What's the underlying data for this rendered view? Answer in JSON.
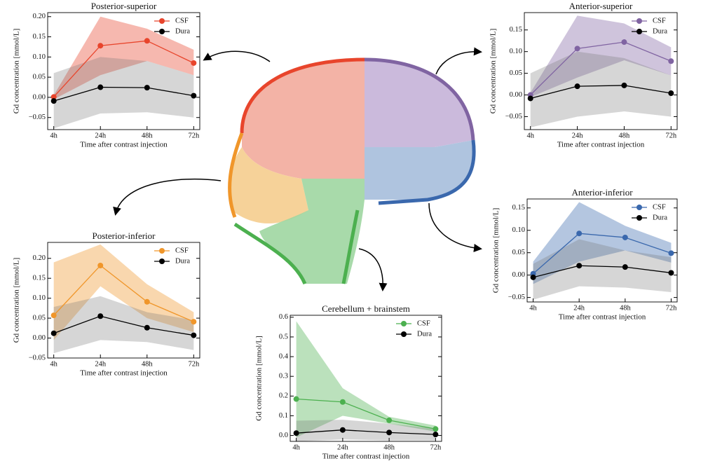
{
  "chart_data": [
    {
      "type": "line",
      "title": "Posterior-superior",
      "xlabel": "Time after contrast injection",
      "ylabel": "Gd concentration [mmol/L]",
      "categories": [
        "4h",
        "24h",
        "48h",
        "72h"
      ],
      "ylim": [
        -0.08,
        0.21
      ],
      "yticks": [
        {
          "value": -0.05,
          "label": "−0.05"
        },
        {
          "value": 0,
          "label": "0.00"
        },
        0.05,
        {
          "value": 0.1,
          "label": "0.10"
        },
        0.15,
        {
          "value": 0.2,
          "label": "0.20"
        }
      ],
      "legend": "upper right",
      "series": [
        {
          "name": "CSF",
          "color": "#e8452c",
          "values": [
            0.001,
            0.128,
            0.14,
            0.085
          ],
          "upper": [
            0.005,
            0.2,
            0.17,
            0.118
          ],
          "lower": [
            -0.005,
            0.055,
            0.09,
            0.055
          ]
        },
        {
          "name": "Dura",
          "color": "#000000",
          "values": [
            -0.009,
            0.025,
            0.024,
            0.004
          ],
          "upper": [
            0.06,
            0.1,
            0.09,
            0.055
          ],
          "lower": [
            -0.077,
            -0.04,
            -0.037,
            -0.05
          ]
        }
      ]
    },
    {
      "type": "line",
      "title": "Anterior-superior",
      "xlabel": "Time after contrast injection",
      "ylabel": "Gd concentration [mmol/L]",
      "categories": [
        "4h",
        "24h",
        "48h",
        "72h"
      ],
      "ylim": [
        -0.08,
        0.19
      ],
      "yticks": [
        {
          "value": -0.05,
          "label": "−0.05"
        },
        {
          "value": 0,
          "label": "0.00"
        },
        0.05,
        {
          "value": 0.1,
          "label": "0.10"
        },
        0.15
      ],
      "legend": "upper right",
      "series": [
        {
          "name": "CSF",
          "color": "#8064a2",
          "values": [
            0.0,
            0.107,
            0.122,
            0.078
          ],
          "upper": [
            0.005,
            0.183,
            0.165,
            0.11
          ],
          "lower": [
            -0.005,
            0.04,
            0.08,
            0.045
          ]
        },
        {
          "name": "Dura",
          "color": "#000000",
          "values": [
            -0.008,
            0.02,
            0.022,
            0.004
          ],
          "upper": [
            0.05,
            0.1,
            0.085,
            0.045
          ],
          "lower": [
            -0.075,
            -0.05,
            -0.038,
            -0.05
          ]
        }
      ]
    },
    {
      "type": "line",
      "title": "Anterior-inferior",
      "xlabel": "Time after contrast injection",
      "ylabel": "Gd concentration [mmol/L]",
      "categories": [
        "4h",
        "24h",
        "48h",
        "72h"
      ],
      "ylim": [
        -0.06,
        0.17
      ],
      "yticks": [
        {
          "value": -0.05,
          "label": "−0.05"
        },
        {
          "value": 0,
          "label": "0.00"
        },
        0.05,
        {
          "value": 0.1,
          "label": "0.10"
        },
        0.15
      ],
      "legend": "upper right",
      "series": [
        {
          "name": "CSF",
          "color": "#3a68ad",
          "values": [
            0.003,
            0.093,
            0.084,
            0.049
          ],
          "upper": [
            0.03,
            0.163,
            0.11,
            0.072
          ],
          "lower": [
            -0.02,
            0.03,
            0.055,
            0.028
          ]
        },
        {
          "name": "Dura",
          "color": "#000000",
          "values": [
            -0.005,
            0.021,
            0.018,
            0.005
          ],
          "upper": [
            0.025,
            0.08,
            0.055,
            0.04
          ],
          "lower": [
            -0.055,
            -0.025,
            -0.028,
            -0.038
          ]
        }
      ]
    },
    {
      "type": "line",
      "title": "Posterior-inferior",
      "xlabel": "Time after contrast injection",
      "ylabel": "Gd concentration [mmol/L]",
      "categories": [
        "4h",
        "24h",
        "48h",
        "72h"
      ],
      "ylim": [
        -0.05,
        0.24
      ],
      "yticks": [
        {
          "value": -0.05,
          "label": "−0.05"
        },
        {
          "value": 0,
          "label": "0.00"
        },
        0.05,
        {
          "value": 0.1,
          "label": "0.10"
        },
        0.15,
        {
          "value": 0.2,
          "label": "0.20"
        }
      ],
      "legend": "upper right",
      "series": [
        {
          "name": "CSF",
          "color": "#f0962a",
          "values": [
            0.057,
            0.182,
            0.091,
            0.041
          ],
          "upper": [
            0.19,
            0.235,
            0.135,
            0.065
          ],
          "lower": [
            -0.005,
            0.13,
            0.05,
            0.015
          ]
        },
        {
          "name": "Dura",
          "color": "#000000",
          "values": [
            0.012,
            0.055,
            0.026,
            0.007
          ],
          "upper": [
            0.078,
            0.105,
            0.065,
            0.045
          ],
          "lower": [
            -0.038,
            -0.005,
            -0.01,
            -0.03
          ]
        }
      ]
    },
    {
      "type": "line",
      "title": "Cerebellum + brainstem",
      "xlabel": "Time after contrast injection",
      "ylabel": "Gd concentration [mmol/L]",
      "categories": [
        "4h",
        "24h",
        "48h",
        "72h"
      ],
      "ylim": [
        -0.03,
        0.61
      ],
      "yticks": [
        {
          "value": 0,
          "label": "0.0"
        },
        0.1,
        0.2,
        0.3,
        0.4,
        0.5,
        0.6
      ],
      "legend": "upper right",
      "series": [
        {
          "name": "CSF",
          "color": "#4cb04f",
          "values": [
            0.185,
            0.17,
            0.077,
            0.033
          ],
          "upper": [
            0.58,
            0.24,
            0.095,
            0.05
          ],
          "lower": [
            -0.01,
            0.1,
            0.06,
            0.02
          ]
        },
        {
          "name": "Dura",
          "color": "#000000",
          "values": [
            0.012,
            0.028,
            0.015,
            0.005
          ],
          "upper": [
            0.075,
            0.08,
            0.06,
            0.035
          ],
          "lower": [
            -0.03,
            -0.02,
            -0.025,
            -0.025
          ]
        }
      ]
    }
  ]
}
